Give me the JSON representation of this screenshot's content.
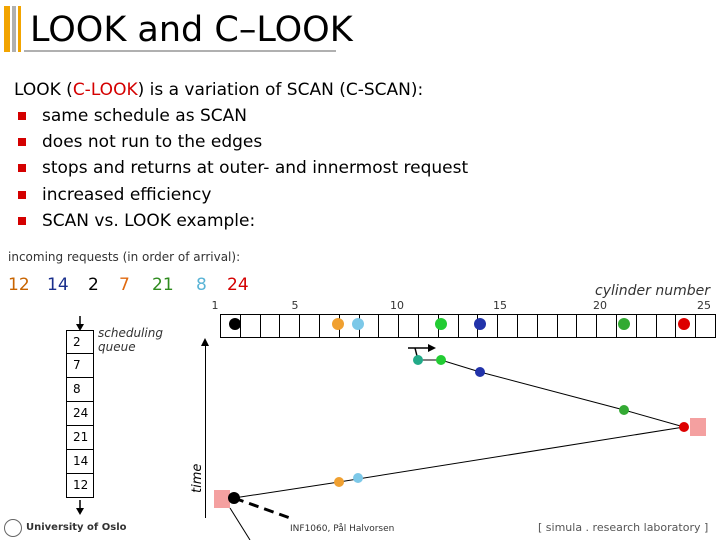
{
  "title": "LOOK and C–LOOK",
  "intro": {
    "part1": "LOOK (",
    "highlight": "C-LOOK",
    "part2": ") is a variation of SCAN (C-SCAN):"
  },
  "bullets": [
    "same schedule as SCAN",
    "does not run to the edges",
    "stops and returns at outer- and innermost request",
    "increased efficiency",
    "SCAN vs. LOOK example:"
  ],
  "requests_label": "incoming requests (in order of arrival):",
  "requests": [
    {
      "value": "12",
      "color": "#c86400"
    },
    {
      "value": "14",
      "color": "#1a2f8c"
    },
    {
      "value": "2",
      "color": "#000000"
    },
    {
      "value": "7",
      "color": "#e06a10"
    },
    {
      "value": "21",
      "color": "#2e8b1e"
    },
    {
      "value": "8",
      "color": "#5ab4d6"
    },
    {
      "value": "24",
      "color": "#d40000"
    }
  ],
  "cylinder_label": "cylinder number",
  "ticks": [
    "1",
    "5",
    "10",
    "15",
    "20",
    "25"
  ],
  "queue_label": "scheduling queue",
  "queue_items": [
    "2",
    "7",
    "8",
    "24",
    "21",
    "14",
    "12"
  ],
  "time_label": "time",
  "footer": {
    "university": "University of Oslo",
    "course": "INF1060, Pål Halvorsen",
    "lab": "[ simula . research laboratory ]"
  },
  "colors": {
    "accent_red": "#d40000",
    "title_orange": "#f2a400",
    "head_start_box": "#f4a0a0"
  }
}
